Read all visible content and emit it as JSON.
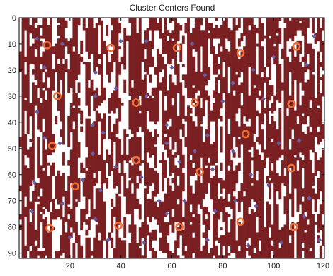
{
  "chart_data": {
    "type": "heatmap",
    "title": "Cluster Centers Found",
    "xlabel": "",
    "ylabel": "",
    "xlim": [
      0,
      120
    ],
    "ylim": [
      92,
      0
    ],
    "xticks": [
      20,
      40,
      60,
      80,
      100,
      120
    ],
    "yticks": [
      0,
      10,
      20,
      30,
      40,
      50,
      60,
      70,
      80,
      90
    ],
    "grid": false,
    "image_colors": {
      "background": "#ffffff",
      "foreground": "#7a1f22"
    },
    "marker_colors": {
      "cluster_center": "#ef6f38",
      "data_point": "#6a5fa6"
    },
    "series": [
      {
        "marker": "circle",
        "points": [
          [
            11,
            10.5
          ],
          [
            36,
            11.5
          ],
          [
            62,
            11.5
          ],
          [
            87,
            13.5
          ],
          [
            109,
            11
          ],
          [
            15,
            30
          ],
          [
            46,
            32.5
          ],
          [
            69,
            32.5
          ],
          [
            107,
            33
          ],
          [
            13,
            49
          ],
          [
            46,
            54.5
          ],
          [
            89,
            44.5
          ],
          [
            22,
            64.5
          ],
          [
            71,
            59
          ],
          [
            107,
            57.5
          ],
          [
            12,
            80.5
          ],
          [
            39,
            79.5
          ],
          [
            63,
            80
          ],
          [
            87,
            78
          ],
          [
            108,
            80
          ]
        ]
      },
      {
        "marker": "diamond",
        "points": [
          [
            7,
            8
          ],
          [
            10,
            19
          ],
          [
            17,
            10
          ],
          [
            30,
            21
          ],
          [
            40,
            9
          ],
          [
            50,
            9
          ],
          [
            60,
            19
          ],
          [
            68,
            10
          ],
          [
            73,
            22
          ],
          [
            92,
            20
          ],
          [
            100,
            15
          ],
          [
            113,
            18
          ],
          [
            116,
            7
          ],
          [
            7,
            36
          ],
          [
            30,
            30
          ],
          [
            29,
            41
          ],
          [
            38,
            27
          ],
          [
            50,
            30
          ],
          [
            58,
            41
          ],
          [
            80,
            32
          ],
          [
            84,
            25
          ],
          [
            96,
            31
          ],
          [
            10,
            46
          ],
          [
            16,
            48
          ],
          [
            29,
            52
          ],
          [
            33,
            44
          ],
          [
            38,
            57
          ],
          [
            58,
            48
          ],
          [
            63,
            55
          ],
          [
            69,
            51
          ],
          [
            74,
            45
          ],
          [
            84,
            51
          ],
          [
            102,
            48
          ],
          [
            110,
            47
          ],
          [
            6,
            63
          ],
          [
            25,
            62
          ],
          [
            32,
            66
          ],
          [
            48,
            61
          ],
          [
            55,
            70
          ],
          [
            76,
            58
          ],
          [
            91,
            60
          ],
          [
            98,
            64
          ],
          [
            114,
            69
          ],
          [
            5,
            74
          ],
          [
            17,
            71
          ],
          [
            30,
            77
          ],
          [
            35,
            85
          ],
          [
            58,
            75
          ],
          [
            65,
            70
          ],
          [
            77,
            74
          ],
          [
            85,
            70
          ],
          [
            93,
            72
          ],
          [
            112,
            76
          ],
          [
            20,
            84
          ],
          [
            49,
            86
          ],
          [
            74,
            85
          ],
          [
            90,
            87
          ],
          [
            103,
            86
          ],
          [
            118,
            85
          ]
        ]
      }
    ]
  }
}
